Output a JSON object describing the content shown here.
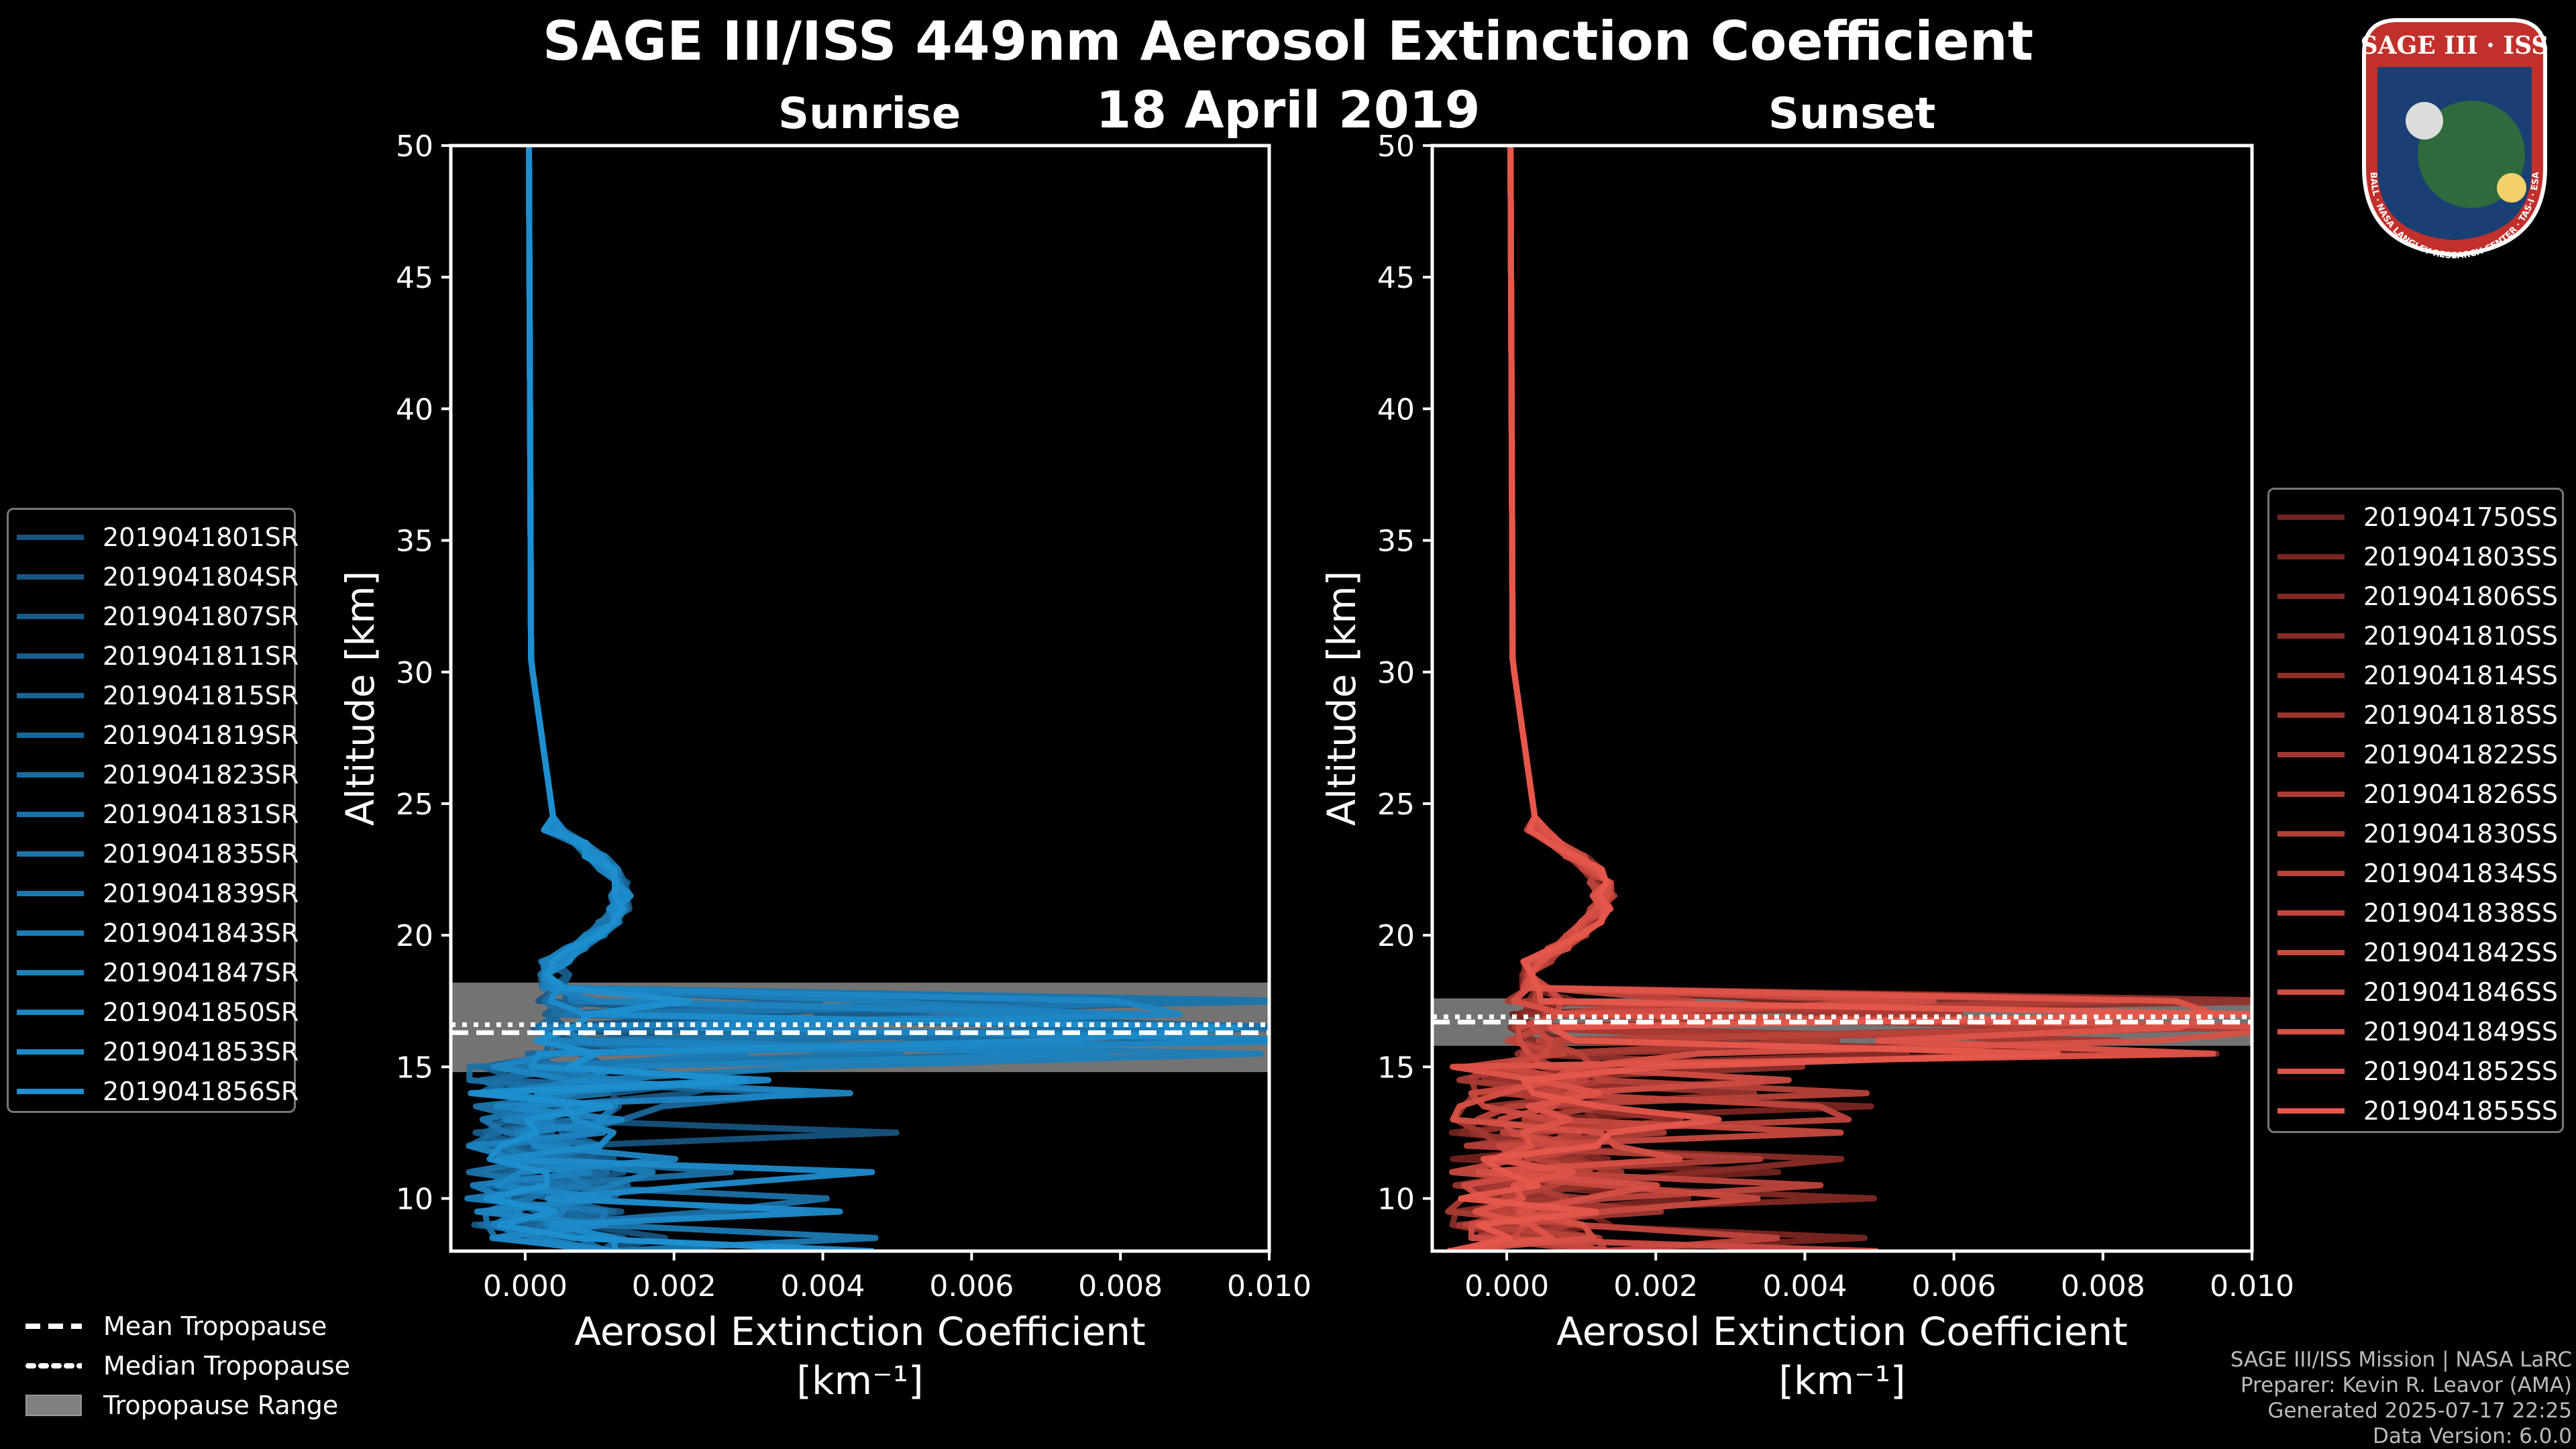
{
  "title": "SAGE III/ISS 449nm Aerosol Extinction Coefficient",
  "date": "18 April 2019",
  "logo": {
    "text": "SAGE III · ISS",
    "ring_text": "BALL · NASA LANGLEY RESEARCH CENTER · TAS-I · ESA"
  },
  "colors": {
    "sunrise": "#1e8fd0",
    "sunset": "#e6574b",
    "tropo_range": "#808080"
  },
  "chart_data": [
    {
      "type": "line",
      "panel": "Sunrise",
      "xlabel_line1": "Aerosol Extinction Coefficient",
      "xlabel_line2": "[km⁻¹]",
      "ylabel": "Altitude [km]",
      "xlim": [
        -0.001,
        0.01
      ],
      "ylim": [
        8,
        50
      ],
      "xticks": [
        0.0,
        0.002,
        0.004,
        0.006,
        0.008,
        0.01
      ],
      "xtick_labels": [
        "0.000",
        "0.002",
        "0.004",
        "0.006",
        "0.008",
        "0.010"
      ],
      "yticks": [
        10,
        15,
        20,
        25,
        30,
        35,
        40,
        45,
        50
      ],
      "tropopause": {
        "mean": 16.3,
        "median": 16.6,
        "range": [
          14.8,
          18.2
        ]
      },
      "series": [
        "2019041801SR",
        "2019041804SR",
        "2019041807SR",
        "2019041811SR",
        "2019041815SR",
        "2019041819SR",
        "2019041823SR",
        "2019041831SR",
        "2019041835SR",
        "2019041839SR",
        "2019041843SR",
        "2019041847SR",
        "2019041850SR",
        "2019041853SR",
        "2019041856SR"
      ]
    },
    {
      "type": "line",
      "panel": "Sunset",
      "xlabel_line1": "Aerosol Extinction Coefficient",
      "xlabel_line2": "[km⁻¹]",
      "ylabel": "Altitude [km]",
      "xlim": [
        -0.001,
        0.01
      ],
      "ylim": [
        8,
        50
      ],
      "xticks": [
        0.0,
        0.002,
        0.004,
        0.006,
        0.008,
        0.01
      ],
      "xtick_labels": [
        "0.000",
        "0.002",
        "0.004",
        "0.006",
        "0.008",
        "0.010"
      ],
      "yticks": [
        10,
        15,
        20,
        25,
        30,
        35,
        40,
        45,
        50
      ],
      "tropopause": {
        "mean": 16.7,
        "median": 16.9,
        "range": [
          15.8,
          17.6
        ]
      },
      "series": [
        "2019041750SS",
        "2019041803SS",
        "2019041806SS",
        "2019041810SS",
        "2019041814SS",
        "2019041818SS",
        "2019041822SS",
        "2019041826SS",
        "2019041830SS",
        "2019041834SS",
        "2019041838SS",
        "2019041842SS",
        "2019041846SS",
        "2019041849SS",
        "2019041852SS",
        "2019041855SS"
      ]
    }
  ],
  "tropo_legend": [
    "Mean Tropopause",
    "Median Tropopause",
    "Tropopause Range"
  ],
  "footer": [
    "SAGE III/ISS Mission | NASA LaRC",
    "Preparer: Kevin R. Leavor (AMA)",
    "Generated 2025-07-17 22:25",
    "Data Version: 6.0.0"
  ]
}
